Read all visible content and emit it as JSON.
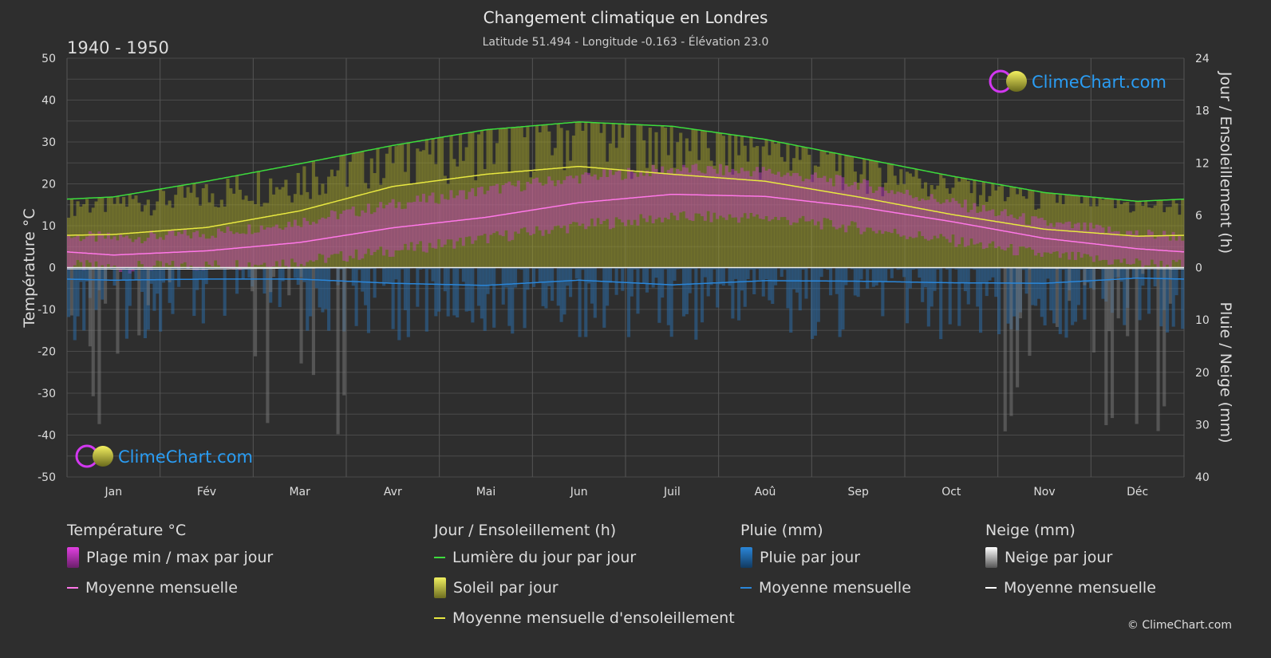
{
  "header": {
    "title": "Changement climatique en Londres",
    "subtitle": "Latitude 51.494 - Longitude -0.163 - Élévation 23.0",
    "period": "1940 - 1950"
  },
  "logo": {
    "text": "ClimeChart.com"
  },
  "copyright": "© ClimeChart.com",
  "colors": {
    "background": "#2e2e2e",
    "daylight": "#3ddc3d",
    "sunshine_mean": "#e8e840",
    "temp_mean": "#ff77e8",
    "temp_range": "#d733d7",
    "sunshine_fill": "#a8a830",
    "rain": "#2a86d9",
    "snow": "#bbbbbb",
    "logo_text": "#2a9df4"
  },
  "chart_data": {
    "type": "line",
    "months": [
      "Jan",
      "Fév",
      "Mar",
      "Avr",
      "Mai",
      "Jun",
      "Juil",
      "Aoû",
      "Sep",
      "Oct",
      "Nov",
      "Déc"
    ],
    "axes": {
      "left": {
        "label": "Température °C",
        "range": [
          -50,
          50
        ],
        "ticks": [
          50,
          40,
          30,
          20,
          10,
          0,
          -10,
          -20,
          -30,
          -40,
          -50
        ]
      },
      "right_top": {
        "label": "Jour / Ensoleillement (h)",
        "range": [
          0,
          24
        ],
        "ticks": [
          24,
          18,
          12,
          6,
          0
        ]
      },
      "right_bottom": {
        "label": "Pluie / Neige (mm)",
        "range": [
          0,
          40
        ],
        "ticks": [
          0,
          10,
          20,
          30,
          40
        ]
      }
    },
    "series": [
      {
        "name": "Lumière du jour par jour",
        "unit": "h",
        "values": [
          8.1,
          9.9,
          11.9,
          14.0,
          15.8,
          16.7,
          16.2,
          14.7,
          12.6,
          10.5,
          8.6,
          7.6
        ]
      },
      {
        "name": "Moyenne mensuelle d'ensoleillement",
        "unit": "h",
        "values": [
          3.8,
          4.6,
          6.5,
          9.3,
          10.7,
          11.6,
          10.7,
          9.9,
          8.1,
          6.1,
          4.4,
          3.6
        ]
      },
      {
        "name": "Moyenne mensuelle",
        "group": "Température °C",
        "unit": "°C",
        "values": [
          3.0,
          4.0,
          6.0,
          9.5,
          12.0,
          15.5,
          17.5,
          17.0,
          14.5,
          11.0,
          7.0,
          4.5
        ]
      },
      {
        "name": "Plage min / max par jour",
        "unit": "°C",
        "min": [
          0.5,
          1.0,
          2.0,
          4.5,
          7.5,
          10.5,
          12.5,
          12.5,
          10.0,
          7.0,
          3.5,
          1.5
        ],
        "max": [
          6.5,
          7.5,
          10.5,
          14.5,
          18.0,
          21.0,
          23.0,
          22.5,
          19.5,
          15.0,
          10.0,
          7.5
        ]
      },
      {
        "name": "Moyenne mensuelle",
        "group": "Pluie (mm)",
        "unit": "mm",
        "values": [
          2.4,
          2.2,
          2.2,
          3.0,
          3.4,
          2.4,
          3.3,
          2.5,
          2.6,
          2.9,
          3.0,
          2.0
        ]
      },
      {
        "name": "Moyenne mensuelle",
        "group": "Neige (mm)",
        "unit": "mm",
        "values": [
          0.3,
          0.3,
          0.1,
          0.0,
          0.0,
          0.0,
          0.0,
          0.0,
          0.0,
          0.0,
          0.1,
          0.2
        ]
      }
    ],
    "grid": true
  },
  "legend": {
    "groups": [
      {
        "title": "Température °C",
        "items": [
          {
            "label": "Plage min / max par jour",
            "swatch": "box",
            "color": "#d733d7"
          },
          {
            "label": "Moyenne mensuelle",
            "swatch": "line",
            "color": "#ff77e8"
          }
        ]
      },
      {
        "title": "Jour / Ensoleillement (h)",
        "items": [
          {
            "label": "Lumière du jour par jour",
            "swatch": "line",
            "color": "#3ddc3d"
          },
          {
            "label": "Soleil par jour",
            "swatch": "box",
            "color": "#c8c83a"
          },
          {
            "label": "Moyenne mensuelle d'ensoleillement",
            "swatch": "line",
            "color": "#e8e840"
          }
        ]
      },
      {
        "title": "Pluie (mm)",
        "items": [
          {
            "label": "Pluie par jour",
            "swatch": "box",
            "color": "#2a86d9"
          },
          {
            "label": "Moyenne mensuelle",
            "swatch": "line",
            "color": "#2a86d9"
          }
        ]
      },
      {
        "title": "Neige (mm)",
        "items": [
          {
            "label": "Neige par jour",
            "swatch": "box",
            "color": "#dddddd"
          },
          {
            "label": "Moyenne mensuelle",
            "swatch": "line",
            "color": "#ffffff"
          }
        ]
      }
    ]
  }
}
